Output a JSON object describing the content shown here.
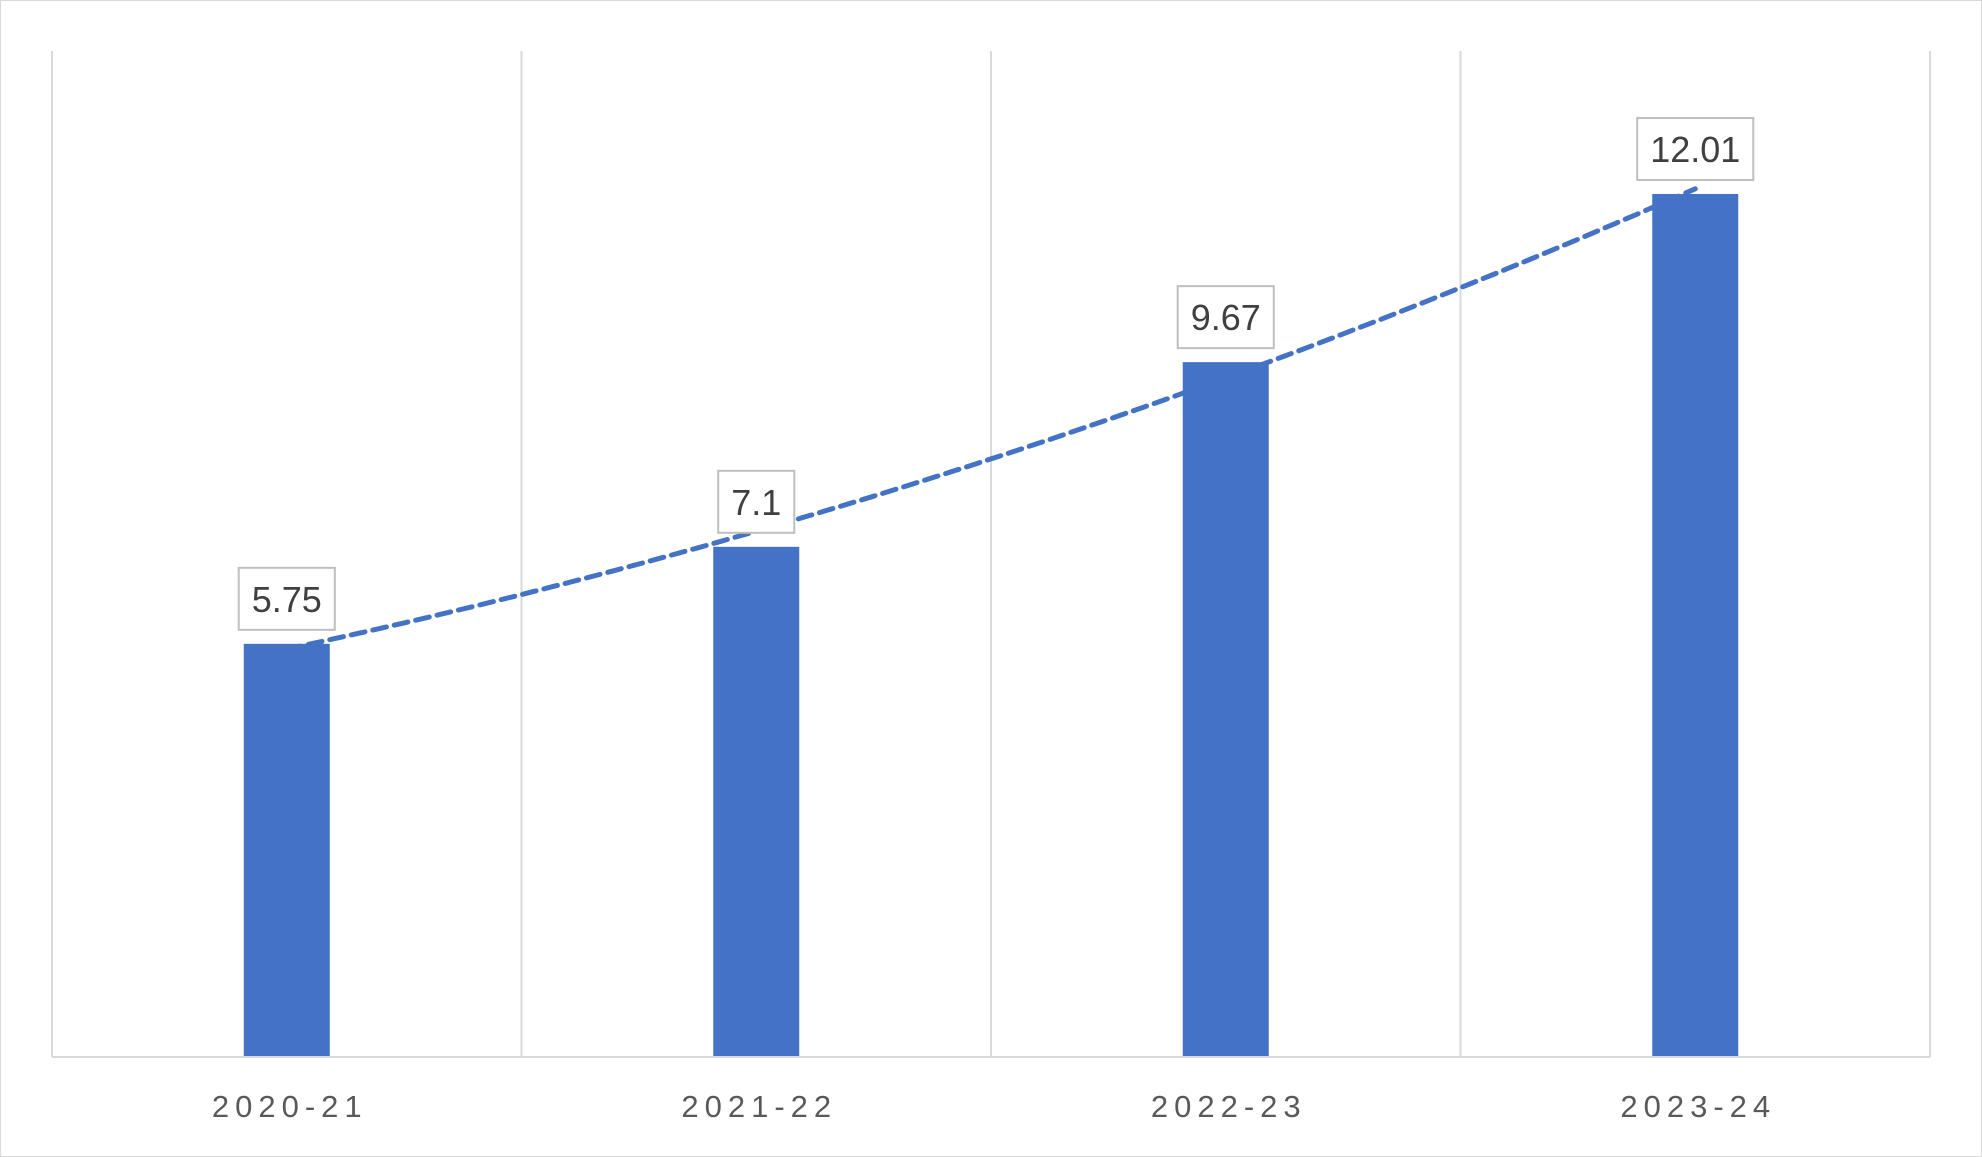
{
  "chart_data": {
    "type": "bar",
    "categories": [
      "2020-21",
      "2021-22",
      "2022-23",
      "2023-24"
    ],
    "values": [
      5.75,
      7.1,
      9.67,
      12.01
    ],
    "data_labels": [
      "5.75",
      "7.1",
      "9.67",
      "12.01"
    ],
    "title": "",
    "xlabel": "",
    "ylabel": "",
    "ylim": [
      0,
      14
    ],
    "trendline": {
      "type": "polynomial",
      "style": "dashed",
      "color": "#4472C4"
    },
    "grid": "vertical",
    "legend": "none",
    "colors": {
      "bar": "#4472C4",
      "grid": "#d9d9d9",
      "axis": "#d9d9d9",
      "label_border": "#bfbfbf",
      "tick_text": "#595959",
      "label_text": "#404040"
    }
  }
}
